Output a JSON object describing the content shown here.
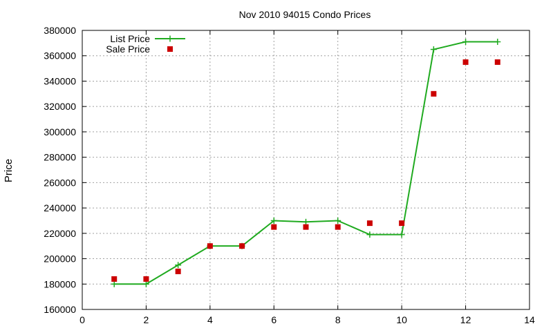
{
  "chart_data": {
    "type": "line",
    "title": "Nov 2010 94015 Condo Prices",
    "xlabel": "",
    "ylabel": "Price",
    "xlim": [
      0,
      14
    ],
    "ylim": [
      160000,
      380000
    ],
    "x_ticks": [
      0,
      2,
      4,
      6,
      8,
      10,
      12,
      14
    ],
    "y_ticks": [
      160000,
      180000,
      200000,
      220000,
      240000,
      260000,
      280000,
      300000,
      320000,
      340000,
      360000,
      380000
    ],
    "grid": true,
    "legend_position": "top-left",
    "series": [
      {
        "name": "List Price",
        "style": "line-with-plus-markers",
        "color": "#1faa1f",
        "x": [
          1,
          2,
          3,
          4,
          5,
          6,
          7,
          8,
          9,
          10,
          11,
          12,
          13
        ],
        "values": [
          180000,
          180000,
          195000,
          210000,
          210000,
          230000,
          229000,
          230000,
          219000,
          219000,
          365000,
          371000,
          371000
        ]
      },
      {
        "name": "Sale Price",
        "style": "square-markers",
        "color": "#cc0000",
        "x": [
          1,
          2,
          3,
          4,
          5,
          6,
          7,
          8,
          9,
          10,
          11,
          12,
          13
        ],
        "values": [
          184000,
          184000,
          190000,
          210000,
          210000,
          225000,
          225000,
          225000,
          228000,
          228000,
          330000,
          355000,
          355000
        ]
      }
    ]
  }
}
